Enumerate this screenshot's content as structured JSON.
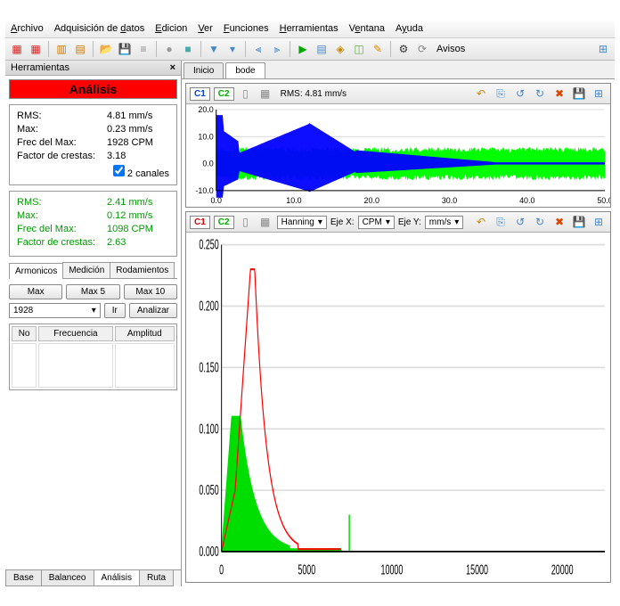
{
  "menu": [
    "Archivo",
    "Adquisición de datos",
    "Edicion",
    "Ver",
    "Funciones",
    "Herramientas",
    "Ventana",
    "Ayuda"
  ],
  "menu_underline": [
    0,
    15,
    0,
    0,
    0,
    0,
    0,
    1
  ],
  "toolbar_label": "Avisos",
  "sidebar": {
    "title": "Herramientas",
    "header": "Análisis",
    "stats1": {
      "rms_label": "RMS:",
      "rms_val": "4.81 mm/s",
      "max_label": "Max:",
      "max_val": "0.23 mm/s",
      "frec_label": "Frec del Max:",
      "frec_val": "1928 CPM",
      "factor_label": "Factor de crestas:",
      "factor_val": "3.18",
      "checkbox": "2 canales"
    },
    "stats2": {
      "rms_label": "RMS:",
      "rms_val": "2.41 mm/s",
      "max_label": "Max:",
      "max_val": "0.12 mm/s",
      "frec_label": "Frec del Max:",
      "frec_val": "1098 CPM",
      "factor_label": "Factor de crestas:",
      "factor_val": "2.63"
    },
    "subtabs": [
      "Armonicos",
      "Medición",
      "Rodamientos"
    ],
    "buttons": [
      "Max",
      "Max 5",
      "Max 10"
    ],
    "freq_value": "1928",
    "ir_btn": "Ir",
    "analizar_btn": "Analizar",
    "table_cols": [
      "No",
      "Frecuencia",
      "Amplitud"
    ],
    "bottom_tabs": [
      "Base",
      "Balanceo",
      "Análisis",
      "Ruta"
    ]
  },
  "content": {
    "top_tabs": [
      "Inicio",
      "bode"
    ],
    "chart1": {
      "c1": "C1",
      "c2": "C2",
      "rms": "RMS: 4.81 mm/s",
      "ylim": [
        -10,
        20
      ],
      "yticks": [
        -10,
        0,
        10,
        20
      ],
      "xlim": [
        0,
        50
      ],
      "xticks": [
        0,
        10,
        20,
        30,
        40,
        50
      ],
      "colors": {
        "c1": "#0000ff",
        "c2": "#00ff00"
      }
    },
    "chart2": {
      "c1": "C1",
      "c2": "C2",
      "window_sel": "Hanning",
      "ejex_label": "Eje X:",
      "ejex_val": "CPM",
      "ejey_label": "Eje Y:",
      "ejey_val": "mm/s",
      "ylim": [
        0,
        0.25
      ],
      "yticks": [
        "0.000",
        "0.050",
        "0.100",
        "0.150",
        "0.200",
        "0.250"
      ],
      "xlim": [
        0,
        22500
      ],
      "xticks": [
        0,
        5000,
        10000,
        15000,
        20000
      ],
      "colors": {
        "c1": "#ff0000",
        "c2": "#00dd00"
      }
    }
  }
}
